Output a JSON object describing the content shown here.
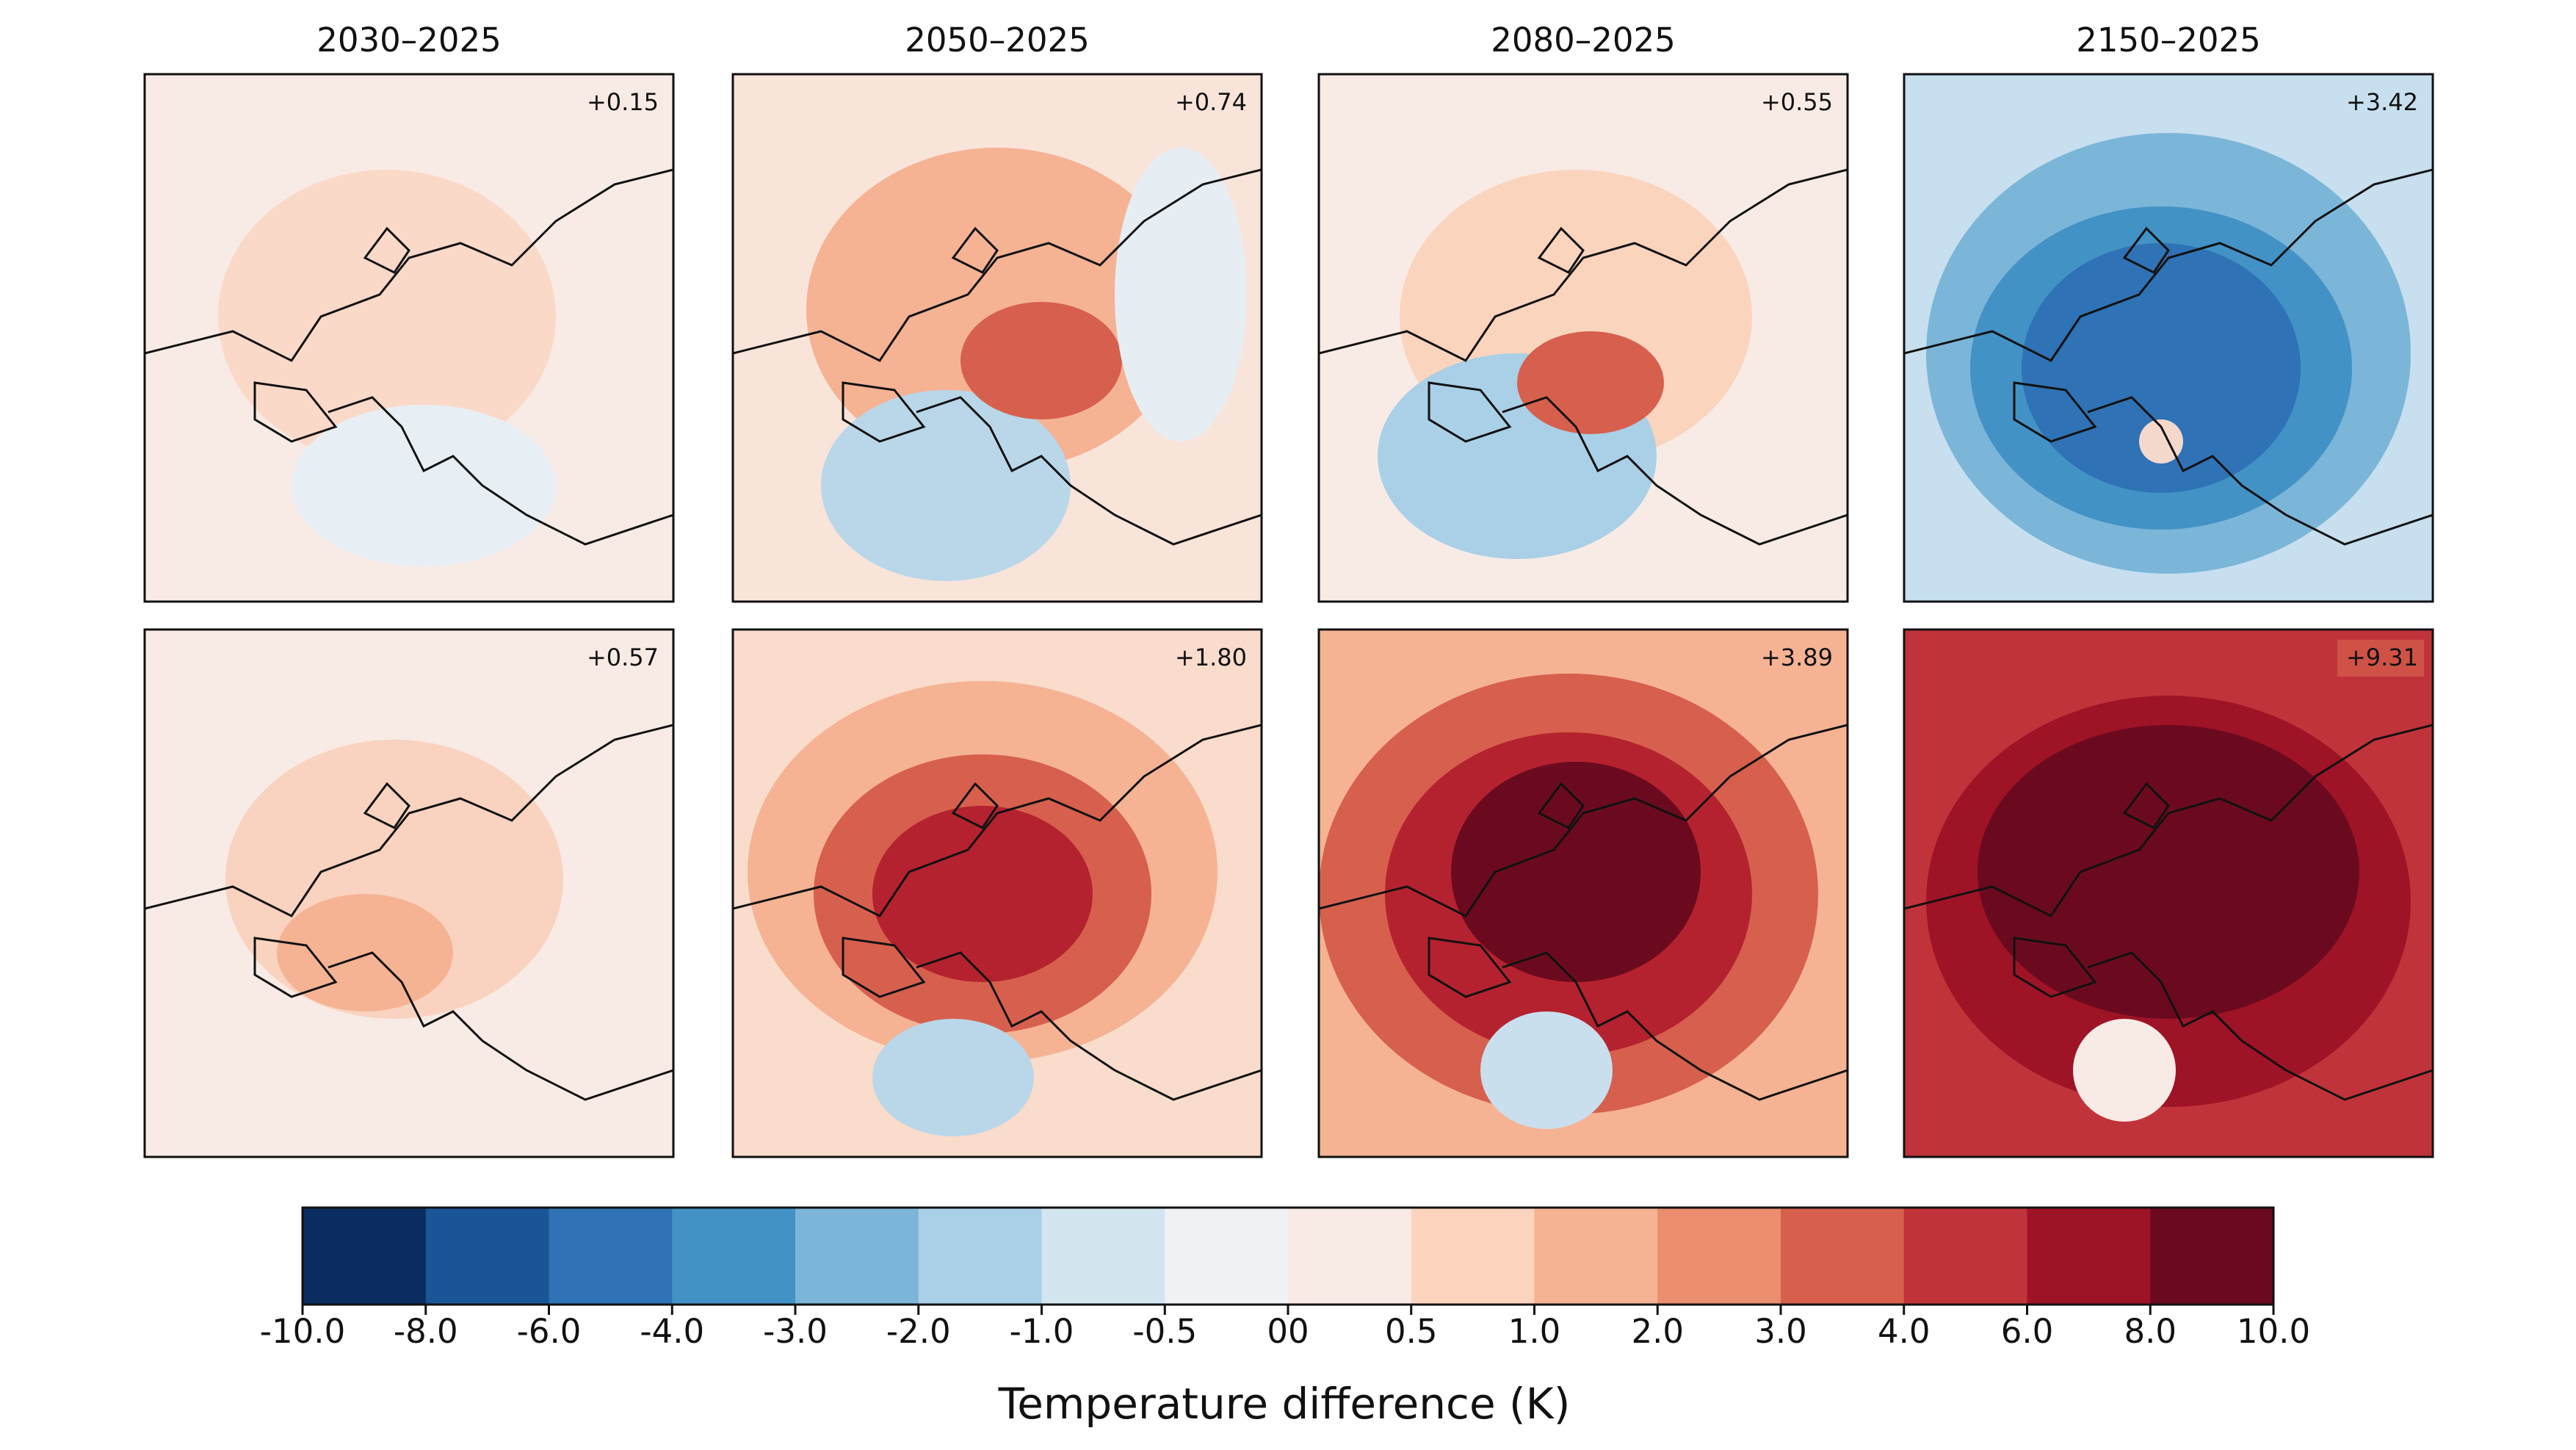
{
  "column_titles": [
    "2030–2025",
    "2050–2025",
    "2080–2025",
    "2150–2025"
  ],
  "panels": [
    "+0.15",
    "+0.74",
    "+0.55",
    "+3.42",
    "+0.57",
    "+1.80",
    "+3.89",
    "+9.31"
  ],
  "colorbar": {
    "label": "Temperature difference (K)",
    "colors": [
      "#0b2c5f",
      "#1a5597",
      "#2f72b5",
      "#4292c6",
      "#7bb6d9",
      "#a9d0e6",
      "#d3e6f0",
      "#eef2f5",
      "#f8ebe6",
      "#fcd4be",
      "#f5b394",
      "#eb8d6f",
      "#d6604d",
      "#c1333a",
      "#9e1326",
      "#6b0a1e"
    ],
    "ticks": [
      {
        "value": -10,
        "label": "-10.0"
      },
      {
        "value": -8,
        "label": "-8.0"
      },
      {
        "value": -6,
        "label": "-6.0"
      },
      {
        "value": -4,
        "label": "-4.0"
      },
      {
        "value": -3,
        "label": "-3.0"
      },
      {
        "value": -2,
        "label": "-2.0"
      },
      {
        "value": -1,
        "label": "-1.0"
      },
      -0.5,
      {
        "value": 0,
        "label": "00"
      },
      0.5,
      {
        "value": 1,
        "label": "1.0"
      },
      {
        "value": 2,
        "label": "2.0"
      },
      {
        "value": 3,
        "label": "3.0"
      },
      {
        "value": 4,
        "label": "4.0"
      },
      {
        "value": 6,
        "label": "6.0"
      },
      {
        "value": 8,
        "label": "8.0"
      },
      {
        "value": 10,
        "label": "10.0"
      }
    ]
  }
}
